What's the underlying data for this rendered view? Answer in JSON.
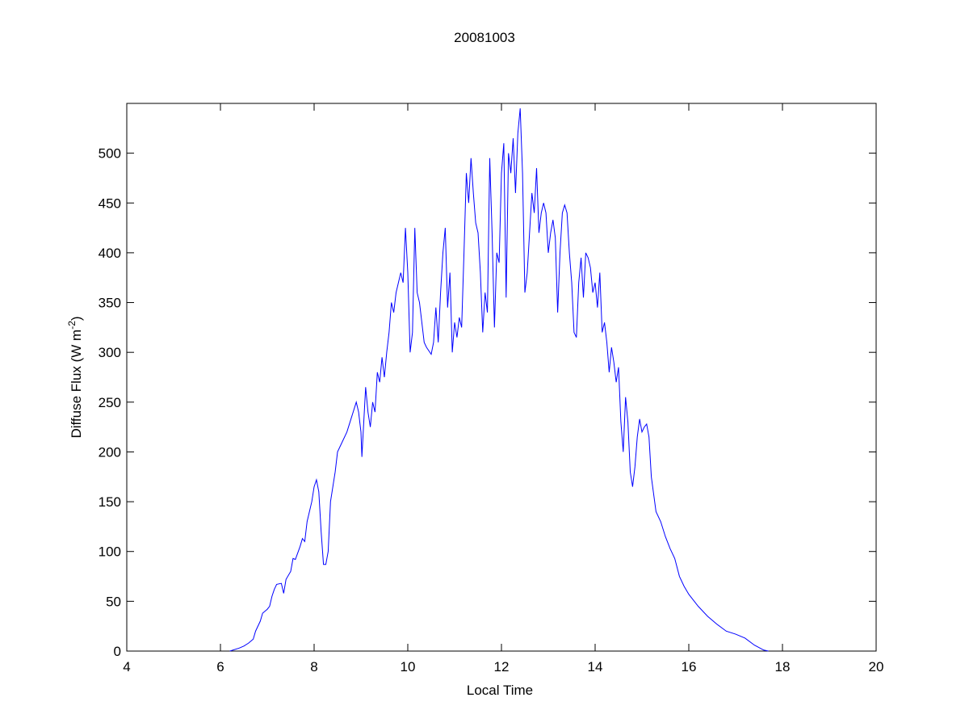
{
  "chart_data": {
    "type": "line",
    "title": "20081003",
    "x_label": "Local Time",
    "y_label": "Diffuse Flux (W m",
    "y_label_superscript": "-2",
    "y_label_end": ")",
    "color": "#0000ff",
    "x": [
      6.2,
      6.4,
      6.5,
      6.6,
      6.7,
      6.75,
      6.85,
      6.9,
      7.0,
      7.05,
      7.1,
      7.15,
      7.2,
      7.3,
      7.35,
      7.4,
      7.5,
      7.55,
      7.6,
      7.7,
      7.75,
      7.8,
      7.85,
      7.9,
      7.95,
      8.0,
      8.05,
      8.1,
      8.15,
      8.2,
      8.25,
      8.3,
      8.35,
      8.4,
      8.45,
      8.5,
      8.6,
      8.7,
      8.8,
      8.9,
      8.95,
      9.0,
      9.02,
      9.1,
      9.15,
      9.2,
      9.25,
      9.3,
      9.35,
      9.4,
      9.45,
      9.5,
      9.55,
      9.6,
      9.65,
      9.7,
      9.75,
      9.8,
      9.85,
      9.9,
      9.95,
      10.0,
      10.05,
      10.1,
      10.15,
      10.2,
      10.25,
      10.3,
      10.35,
      10.4,
      10.5,
      10.55,
      10.6,
      10.65,
      10.7,
      10.75,
      10.8,
      10.85,
      10.9,
      10.95,
      11.0,
      11.05,
      11.1,
      11.15,
      11.2,
      11.25,
      11.3,
      11.35,
      11.4,
      11.45,
      11.5,
      11.55,
      11.6,
      11.65,
      11.7,
      11.75,
      11.8,
      11.85,
      11.9,
      11.95,
      12.0,
      12.05,
      12.1,
      12.15,
      12.2,
      12.25,
      12.3,
      12.35,
      12.4,
      12.45,
      12.5,
      12.55,
      12.6,
      12.65,
      12.7,
      12.75,
      12.8,
      12.85,
      12.9,
      12.95,
      13.0,
      13.05,
      13.1,
      13.15,
      13.2,
      13.25,
      13.3,
      13.35,
      13.4,
      13.45,
      13.5,
      13.55,
      13.6,
      13.65,
      13.7,
      13.75,
      13.8,
      13.85,
      13.9,
      13.95,
      14.0,
      14.05,
      14.1,
      14.15,
      14.2,
      14.25,
      14.3,
      14.35,
      14.4,
      14.45,
      14.5,
      14.55,
      14.6,
      14.65,
      14.7,
      14.75,
      14.8,
      14.85,
      14.9,
      14.95,
      15.0,
      15.05,
      15.1,
      15.15,
      15.2,
      15.3,
      15.4,
      15.5,
      15.6,
      15.7,
      15.8,
      15.9,
      16.0,
      16.2,
      16.4,
      16.6,
      16.8,
      17.0,
      17.2,
      17.4,
      17.6,
      17.7
    ],
    "values": [
      0,
      3,
      5,
      8,
      12,
      20,
      30,
      38,
      42,
      45,
      55,
      62,
      67,
      68,
      58,
      72,
      80,
      93,
      92,
      105,
      113,
      110,
      130,
      140,
      150,
      165,
      172,
      160,
      120,
      87,
      87,
      100,
      150,
      165,
      180,
      200,
      210,
      220,
      235,
      250,
      240,
      220,
      195,
      265,
      240,
      225,
      250,
      240,
      280,
      270,
      295,
      275,
      300,
      320,
      350,
      340,
      360,
      370,
      380,
      370,
      425,
      380,
      300,
      320,
      425,
      360,
      350,
      330,
      310,
      305,
      298,
      310,
      345,
      310,
      360,
      400,
      425,
      345,
      380,
      300,
      330,
      315,
      335,
      325,
      400,
      480,
      450,
      495,
      460,
      430,
      420,
      380,
      320,
      360,
      340,
      495,
      420,
      325,
      400,
      390,
      480,
      510,
      355,
      500,
      480,
      515,
      460,
      520,
      545,
      480,
      360,
      380,
      420,
      460,
      440,
      485,
      420,
      440,
      450,
      440,
      400,
      420,
      433,
      415,
      340,
      400,
      440,
      448,
      440,
      400,
      370,
      320,
      315,
      370,
      395,
      355,
      400,
      395,
      385,
      360,
      370,
      345,
      380,
      320,
      330,
      310,
      280,
      305,
      290,
      270,
      285,
      230,
      200,
      255,
      230,
      180,
      165,
      185,
      215,
      233,
      220,
      225,
      228,
      215,
      175,
      140,
      130,
      115,
      103,
      93,
      75,
      65,
      57,
      45,
      35,
      27,
      20,
      17,
      13,
      6,
      1,
      0
    ],
    "xlim": [
      4,
      20
    ],
    "xticks": [
      4,
      6,
      8,
      10,
      12,
      14,
      16,
      18,
      20
    ],
    "ylim": [
      0,
      550
    ],
    "yticks": [
      0,
      50,
      100,
      150,
      200,
      250,
      300,
      350,
      400,
      450,
      500
    ],
    "grid": false
  }
}
